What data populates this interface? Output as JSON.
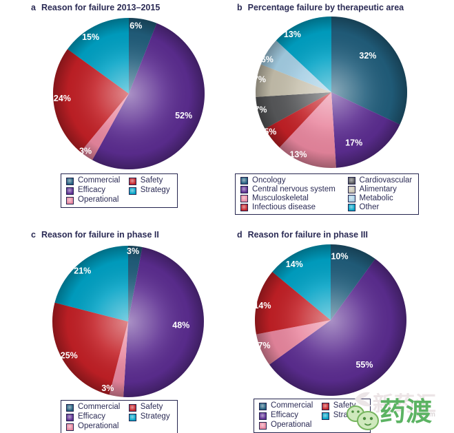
{
  "figure": {
    "background_color": "#ffffff",
    "text_color": "#2b2b55",
    "legend_border_color": "#23234d"
  },
  "watermark": {
    "site_name": "新药汇",
    "domain_fragment": "n.com",
    "brand_name": "药渡",
    "brand_color": "#5cb363",
    "site_color": "#ece4e6"
  },
  "chart_data": [
    {
      "id": "a",
      "type": "pie",
      "letter": "a",
      "title": "Reason for failure 2013–2015",
      "labels": [
        "Commercial",
        "Efficacy",
        "Operational",
        "Safety",
        "Strategy"
      ],
      "values": [
        6,
        52,
        3,
        24,
        15
      ],
      "colors": [
        "#215e7c",
        "#5c2d91",
        "#e9879f",
        "#c32026",
        "#00a2c5"
      ],
      "start_angle_deg": 0,
      "direction": "clockwise",
      "legend_position": "below",
      "legend_rows": 3
    },
    {
      "id": "b",
      "type": "pie",
      "letter": "b",
      "title": "Percentage failure by therapeutic area",
      "labels": [
        "Oncology",
        "Central nervous system",
        "Musculoskeletal",
        "Infectious disease",
        "Cardiovascular",
        "Alimentary",
        "Metabolic",
        "Other"
      ],
      "values": [
        32,
        17,
        13,
        5,
        7,
        7,
        6,
        13
      ],
      "colors": [
        "#215e7c",
        "#5c2d91",
        "#e9879f",
        "#c32026",
        "#57585a",
        "#c6c0ad",
        "#a4cee4",
        "#00a2c5"
      ],
      "start_angle_deg": 0,
      "direction": "clockwise",
      "legend_position": "below",
      "legend_rows": 4
    },
    {
      "id": "c",
      "type": "pie",
      "letter": "c",
      "title": "Reason for failure in phase II",
      "labels": [
        "Commercial",
        "Efficacy",
        "Operational",
        "Safety",
        "Strategy"
      ],
      "values": [
        3,
        48,
        3,
        25,
        21
      ],
      "colors": [
        "#215e7c",
        "#5c2d91",
        "#e9879f",
        "#c32026",
        "#00a2c5"
      ],
      "start_angle_deg": 0,
      "direction": "clockwise",
      "legend_position": "below",
      "legend_rows": 3
    },
    {
      "id": "d",
      "type": "pie",
      "letter": "d",
      "title": "Reason for failure in phase III",
      "labels": [
        "Commercial",
        "Efficacy",
        "Operational",
        "Safety",
        "Strategy"
      ],
      "values": [
        10,
        55,
        7,
        14,
        14
      ],
      "colors": [
        "#215e7c",
        "#5c2d91",
        "#e9879f",
        "#c32026",
        "#00a2c5"
      ],
      "start_angle_deg": 0,
      "direction": "clockwise",
      "legend_position": "below",
      "legend_rows": 3
    }
  ]
}
